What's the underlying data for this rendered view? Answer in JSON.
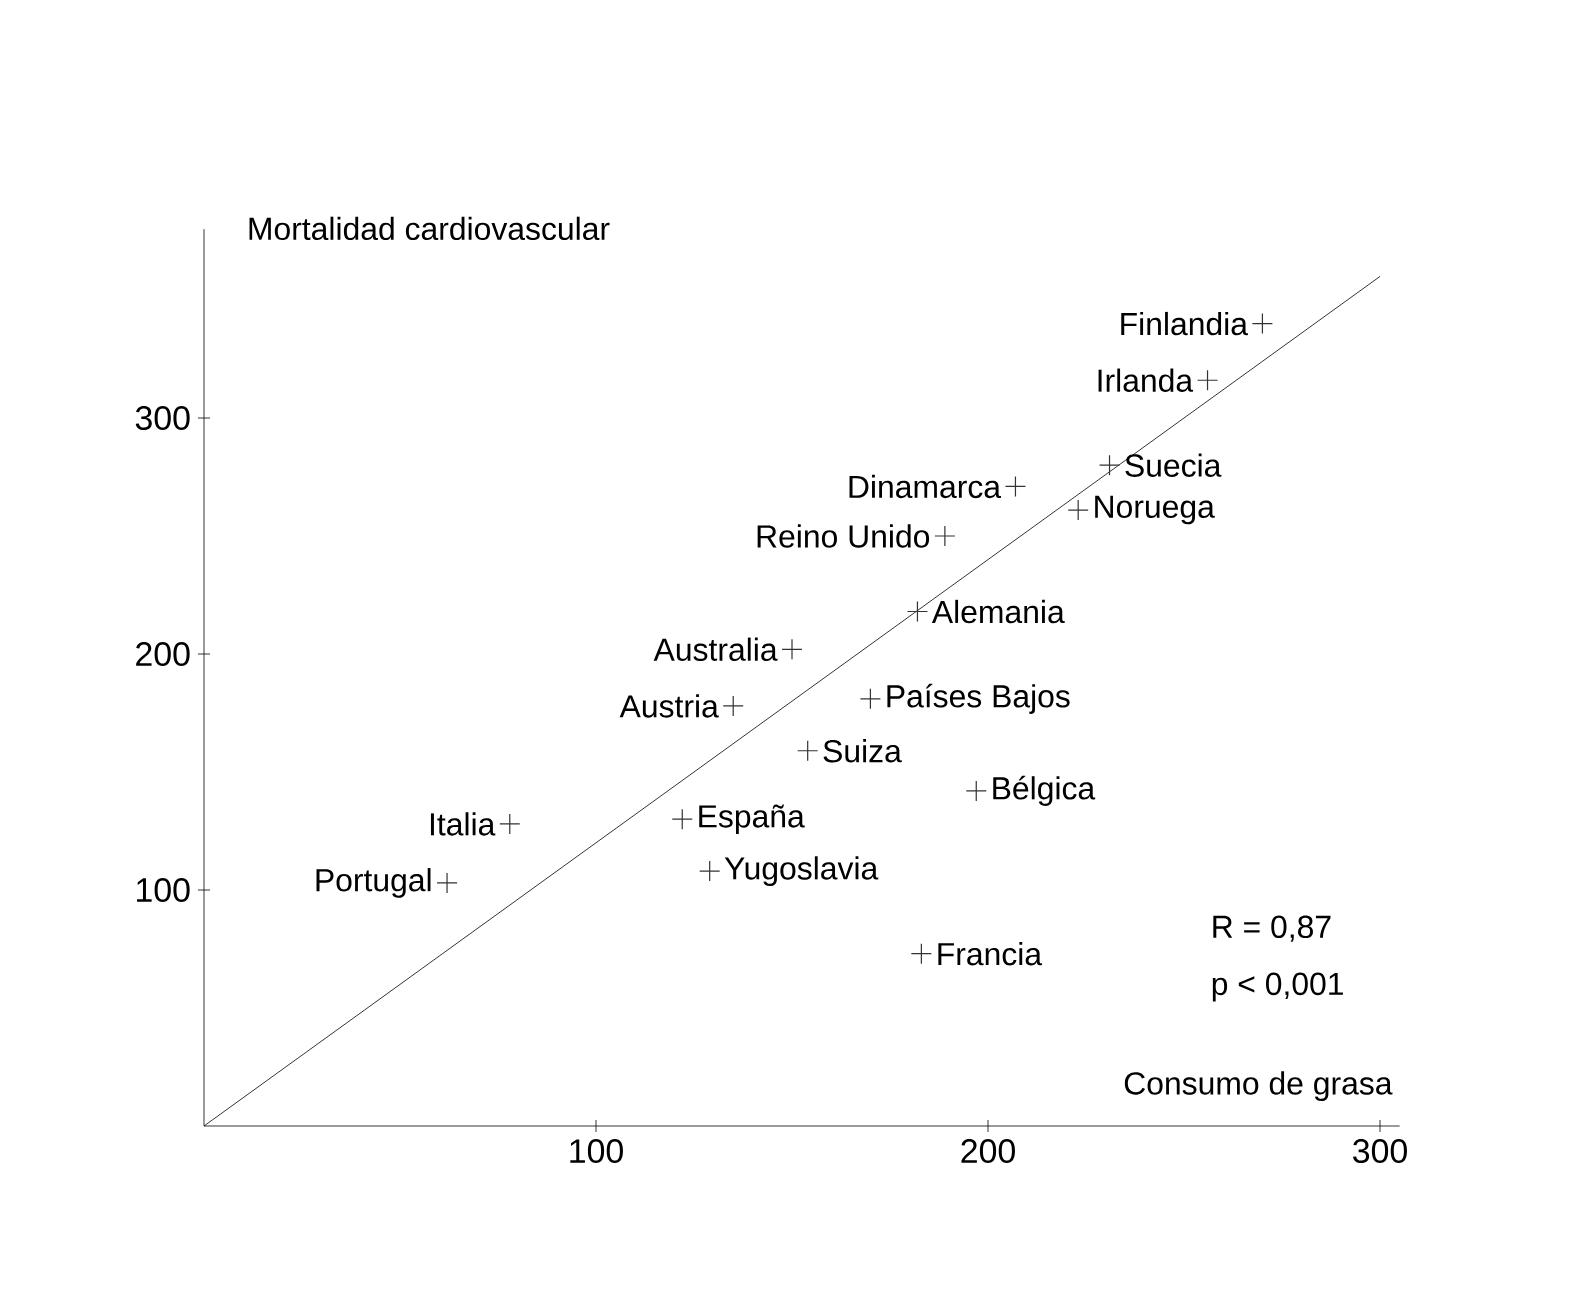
{
  "chart_data": {
    "type": "scatter",
    "xlabel": "Consumo de grasa",
    "ylabel": "Mortalidad cardiovascular",
    "xlim": [
      0,
      305
    ],
    "ylim": [
      0,
      380
    ],
    "xticks": [
      100,
      200,
      300
    ],
    "yticks": [
      100,
      200,
      300
    ],
    "grid": false,
    "series": [
      {
        "marker": "cross",
        "color": "#333333",
        "x": [
          270,
          256,
          231,
          223,
          207,
          189,
          182,
          150,
          135,
          170,
          154,
          197,
          122,
          129,
          78,
          62,
          183
        ],
        "values": [
          340,
          316,
          280,
          261,
          271,
          250,
          218,
          202,
          178,
          181,
          159,
          142,
          130,
          108,
          128,
          103,
          73
        ]
      },
      {
        "type": "line",
        "color": "#000000",
        "x": [
          0,
          300
        ],
        "values": [
          0,
          360
        ]
      }
    ],
    "annotations": [
      "R = 0,87",
      "p < 0,001",
      {
        "text": "Finlandia",
        "x": 270,
        "y": 340
      },
      {
        "text": "Irlanda",
        "x": 256,
        "y": 316
      },
      {
        "text": "Suecia",
        "x": 231,
        "y": 280
      },
      {
        "text": "Noruega",
        "x": 223,
        "y": 261
      },
      {
        "text": "Dinamarca",
        "x": 207,
        "y": 271
      },
      {
        "text": "Reino Unido",
        "x": 189,
        "y": 250
      },
      {
        "text": "Alemania",
        "x": 182,
        "y": 218
      },
      {
        "text": "Australia",
        "x": 150,
        "y": 202
      },
      {
        "text": "Austria",
        "x": 135,
        "y": 178
      },
      {
        "text": "Países Bajos",
        "x": 170,
        "y": 181
      },
      {
        "text": "Suiza",
        "x": 154,
        "y": 159
      },
      {
        "text": "Bélgica",
        "x": 197,
        "y": 142
      },
      {
        "text": "España",
        "x": 122,
        "y": 130
      },
      {
        "text": "Yugoslavia",
        "x": 129,
        "y": 108
      },
      {
        "text": "Italia",
        "x": 78,
        "y": 128
      },
      {
        "text": "Portugal",
        "x": 62,
        "y": 103
      },
      {
        "text": "Francia",
        "x": 183,
        "y": 73
      }
    ]
  }
}
